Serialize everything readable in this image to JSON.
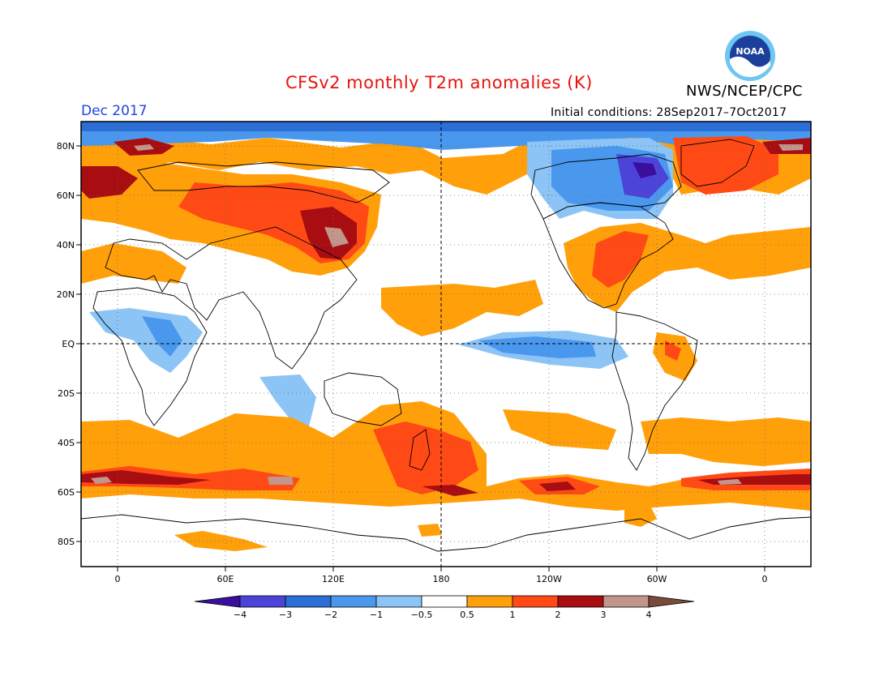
{
  "header": {
    "title": "CFSv2 monthly T2m anomalies (K)",
    "month": "Dec 2017",
    "initial_conditions": "Initial conditions: 28Sep2017–7Oct2017",
    "agency": "NWS/NCEP/CPC",
    "logo_text": "NOAA"
  },
  "map": {
    "lat_labels": [
      "80N",
      "60N",
      "40N",
      "20N",
      "EQ",
      "20S",
      "40S",
      "60S",
      "80S"
    ],
    "lon_labels": [
      "0",
      "60E",
      "120E",
      "180",
      "120W",
      "60W",
      "0"
    ]
  },
  "legend": {
    "colors": [
      "#3b0f9e",
      "#4c44d8",
      "#2a6ed6",
      "#4a98ee",
      "#8cc4f6",
      "#ffffff",
      "#ffa00a",
      "#ff4a16",
      "#a80d12",
      "#c3968c",
      "#7a4a3a"
    ],
    "labels": [
      "−4",
      "−3",
      "−2",
      "−1",
      "−0.5",
      "0.5",
      "1",
      "2",
      "3",
      "4"
    ]
  }
}
